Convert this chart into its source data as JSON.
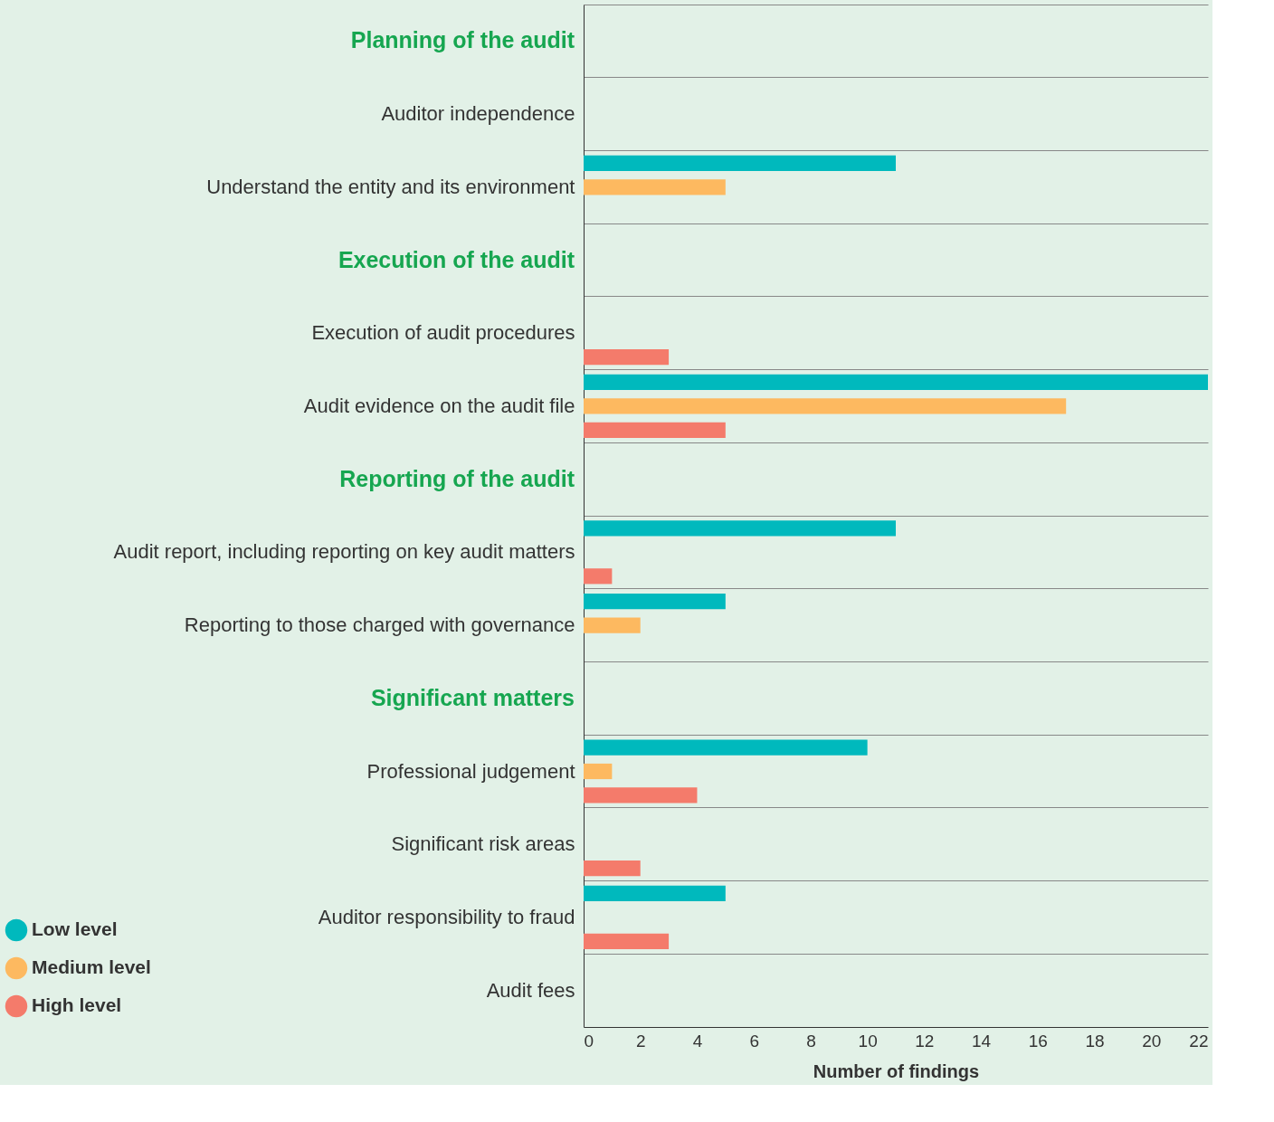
{
  "chart_data": {
    "type": "bar",
    "orientation": "horizontal",
    "xlabel": "Number of findings",
    "categories": [
      null,
      "Auditor independence",
      "Understand the entity and its environment",
      null,
      "Execution of audit procedures",
      "Audit evidence on the audit file",
      null,
      "Audit report, including reporting on key audit matters",
      "Reporting to those charged with governance",
      null,
      "Professional judgement",
      "Significant risk areas",
      "Auditor responsibility to fraud",
      "Audit fees"
    ],
    "annotations": [
      "Planning of the audit",
      "Execution of the audit",
      "Reporting of the audit",
      "Significant matters"
    ],
    "series": [
      {
        "name": "Low level",
        "color": "#00b9bd",
        "values": [
          null,
          null,
          11,
          null,
          null,
          22,
          null,
          11,
          5,
          null,
          10,
          null,
          5,
          null
        ]
      },
      {
        "name": "Medium level",
        "color": "#fdb960",
        "values": [
          null,
          null,
          5,
          null,
          null,
          17,
          null,
          null,
          2,
          null,
          1,
          null,
          null,
          null
        ]
      },
      {
        "name": "High level",
        "color": "#f47b6b",
        "values": [
          null,
          null,
          null,
          null,
          3,
          5,
          null,
          1,
          null,
          null,
          4,
          2,
          3,
          null
        ]
      }
    ],
    "xlim": [
      0,
      22
    ],
    "xticks": [
      0,
      2,
      4,
      6,
      8,
      10,
      12,
      14,
      16,
      18,
      20,
      22
    ],
    "grid": "y",
    "legend": "bottom left"
  }
}
